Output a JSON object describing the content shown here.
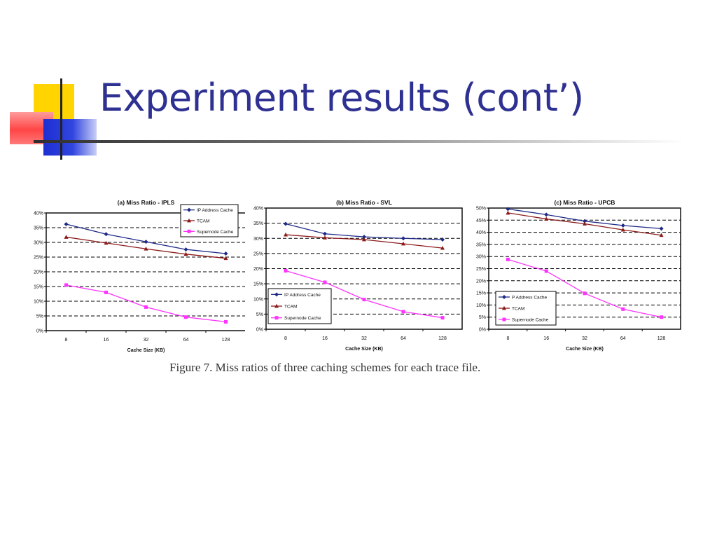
{
  "slide": {
    "title": "Experiment results (cont’)",
    "caption": "Figure 7. Miss ratios of three caching schemes for each trace file.",
    "colors": {
      "title": "#2e3192",
      "deco_yellow": "#ffd400",
      "deco_red": "#ff3a3a",
      "deco_blue": "#2a3dd6"
    }
  },
  "chart_data": [
    {
      "type": "line",
      "title": "(a) Miss Ratio - IPLS",
      "xlabel": "Cache Size (KB)",
      "ylabel": "",
      "categories": [
        "8",
        "16",
        "32",
        "64",
        "128"
      ],
      "y_ticks": [
        "0%",
        "5%",
        "10%",
        "15%",
        "20%",
        "25%",
        "30%",
        "35%",
        "40%"
      ],
      "ylim": [
        0,
        40
      ],
      "grid": "dashed horizontal",
      "legend_position": "top-right",
      "series": [
        {
          "name": "IP Address Cache",
          "color": "#1f2a86",
          "marker": "diamond",
          "values": [
            36.2,
            32.8,
            30.2,
            27.6,
            26.2
          ]
        },
        {
          "name": "TCAM",
          "color": "#8b1a1a",
          "marker": "triangle",
          "values": [
            31.8,
            29.8,
            27.8,
            26.0,
            24.6
          ]
        },
        {
          "name": "Supernode Cache",
          "color": "#ff33ff",
          "marker": "square",
          "values": [
            15.5,
            13.0,
            8.0,
            4.6,
            3.0
          ]
        }
      ]
    },
    {
      "type": "line",
      "title": "(b) Miss Ratio - SVL",
      "xlabel": "Cache Size (KB)",
      "ylabel": "",
      "categories": [
        "8",
        "16",
        "32",
        "64",
        "128"
      ],
      "y_ticks": [
        "0%",
        "5%",
        "10%",
        "15%",
        "20%",
        "25%",
        "30%",
        "35%",
        "40%"
      ],
      "ylim": [
        0,
        40
      ],
      "grid": "dashed horizontal",
      "legend_position": "bottom-left",
      "series": [
        {
          "name": "IP Address Cache",
          "color": "#1f2a86",
          "marker": "diamond",
          "values": [
            34.8,
            31.5,
            30.5,
            30.0,
            29.6
          ]
        },
        {
          "name": "TCAM",
          "color": "#8b1a1a",
          "marker": "triangle",
          "values": [
            31.2,
            30.2,
            29.6,
            28.2,
            26.8
          ]
        },
        {
          "name": "Supernode Cache",
          "color": "#ff33ff",
          "marker": "square",
          "values": [
            19.3,
            15.5,
            9.8,
            5.8,
            3.8
          ]
        }
      ]
    },
    {
      "type": "line",
      "title": "(c) Miss Ratio - UPCB",
      "xlabel": "Cache Size (KB)",
      "ylabel": "",
      "categories": [
        "8",
        "16",
        "32",
        "64",
        "128"
      ],
      "y_ticks": [
        "0%",
        "5%",
        "10%",
        "15%",
        "20%",
        "25%",
        "30%",
        "35%",
        "40%",
        "45%",
        "50%"
      ],
      "ylim": [
        0,
        50
      ],
      "grid": "dashed horizontal",
      "legend_position": "bottom-left",
      "series": [
        {
          "name": "P Address Cache",
          "color": "#1f2a86",
          "marker": "diamond",
          "values": [
            49.6,
            47.3,
            44.6,
            42.8,
            41.5
          ]
        },
        {
          "name": "TCAM",
          "color": "#8b1a1a",
          "marker": "triangle",
          "values": [
            48.0,
            45.5,
            43.5,
            41.0,
            38.8
          ]
        },
        {
          "name": "Supernode Cache",
          "color": "#ff33ff",
          "marker": "square",
          "values": [
            28.8,
            24.0,
            14.8,
            8.3,
            5.0
          ]
        }
      ]
    }
  ]
}
